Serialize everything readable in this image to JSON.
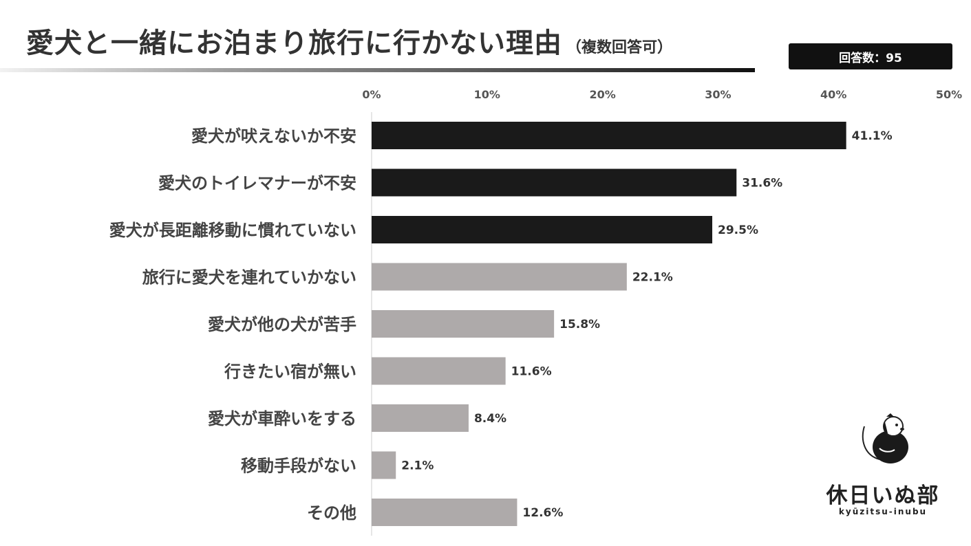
{
  "header": {
    "title": "愛犬と一緒にお泊まり旅行に行かない理由",
    "subtitle": "（複数回答可）",
    "count_label": "回答数：95"
  },
  "brand": {
    "name": "休日いぬ部",
    "romaji": "kyūzitsu-inubu",
    "icon": "dog-logo-icon"
  },
  "colors": {
    "highlight": "#1a1a1a",
    "normal": "#aeaaaa",
    "axis": "#cccccc"
  },
  "chart_data": {
    "type": "bar",
    "orientation": "horizontal",
    "title": "愛犬と一緒にお泊まり旅行に行かない理由",
    "categories": [
      "愛犬が吠えないか不安",
      "愛犬のトイレマナーが不安",
      "愛犬が長距離移動に慣れていない",
      "旅行に愛犬を連れていかない",
      "愛犬が他の犬が苦手",
      "行きたい宿が無い",
      "愛犬が車酔いをする",
      "移動手段がない",
      "その他"
    ],
    "values": [
      41.1,
      31.6,
      29.5,
      22.1,
      15.8,
      11.6,
      8.4,
      2.1,
      12.6
    ],
    "value_labels": [
      "41.1%",
      "31.6%",
      "29.5%",
      "22.1%",
      "15.8%",
      "11.6%",
      "8.4%",
      "2.1%",
      "12.6%"
    ],
    "highlighted": [
      true,
      true,
      true,
      false,
      false,
      false,
      false,
      false,
      false
    ],
    "xlim": [
      0,
      50
    ],
    "xticks": [
      "0%",
      "10%",
      "20%",
      "30%",
      "40%",
      "50%"
    ],
    "xtick_values": [
      0,
      10,
      20,
      30,
      40,
      50
    ],
    "grid": false,
    "legend": "none"
  }
}
